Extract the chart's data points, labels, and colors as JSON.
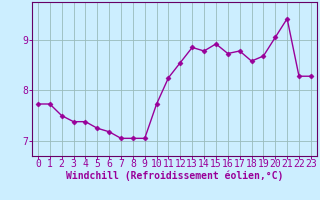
{
  "x": [
    0,
    1,
    2,
    3,
    4,
    5,
    6,
    7,
    8,
    9,
    10,
    11,
    12,
    13,
    14,
    15,
    16,
    17,
    18,
    19,
    20,
    21,
    22,
    23
  ],
  "y": [
    7.73,
    7.73,
    7.5,
    7.38,
    7.38,
    7.25,
    7.18,
    7.05,
    7.05,
    7.05,
    7.73,
    8.25,
    8.55,
    8.85,
    8.78,
    8.92,
    8.73,
    8.78,
    8.58,
    8.68,
    9.05,
    9.42,
    8.28,
    8.28
  ],
  "line_color": "#990099",
  "marker": "D",
  "markersize": 2.5,
  "linewidth": 1.0,
  "xlabel": "Windchill (Refroidissement éolien,°C)",
  "ylim": [
    6.7,
    9.75
  ],
  "xlim": [
    -0.5,
    23.5
  ],
  "yticks": [
    7,
    8,
    9
  ],
  "xticks": [
    0,
    1,
    2,
    3,
    4,
    5,
    6,
    7,
    8,
    9,
    10,
    11,
    12,
    13,
    14,
    15,
    16,
    17,
    18,
    19,
    20,
    21,
    22,
    23
  ],
  "bg_color": "#cceeff",
  "grid_color": "#99bbbb",
  "tick_label_color": "#990099",
  "xlabel_color": "#990099",
  "xlabel_fontsize": 7,
  "tick_fontsize": 7,
  "spine_color": "#660066"
}
